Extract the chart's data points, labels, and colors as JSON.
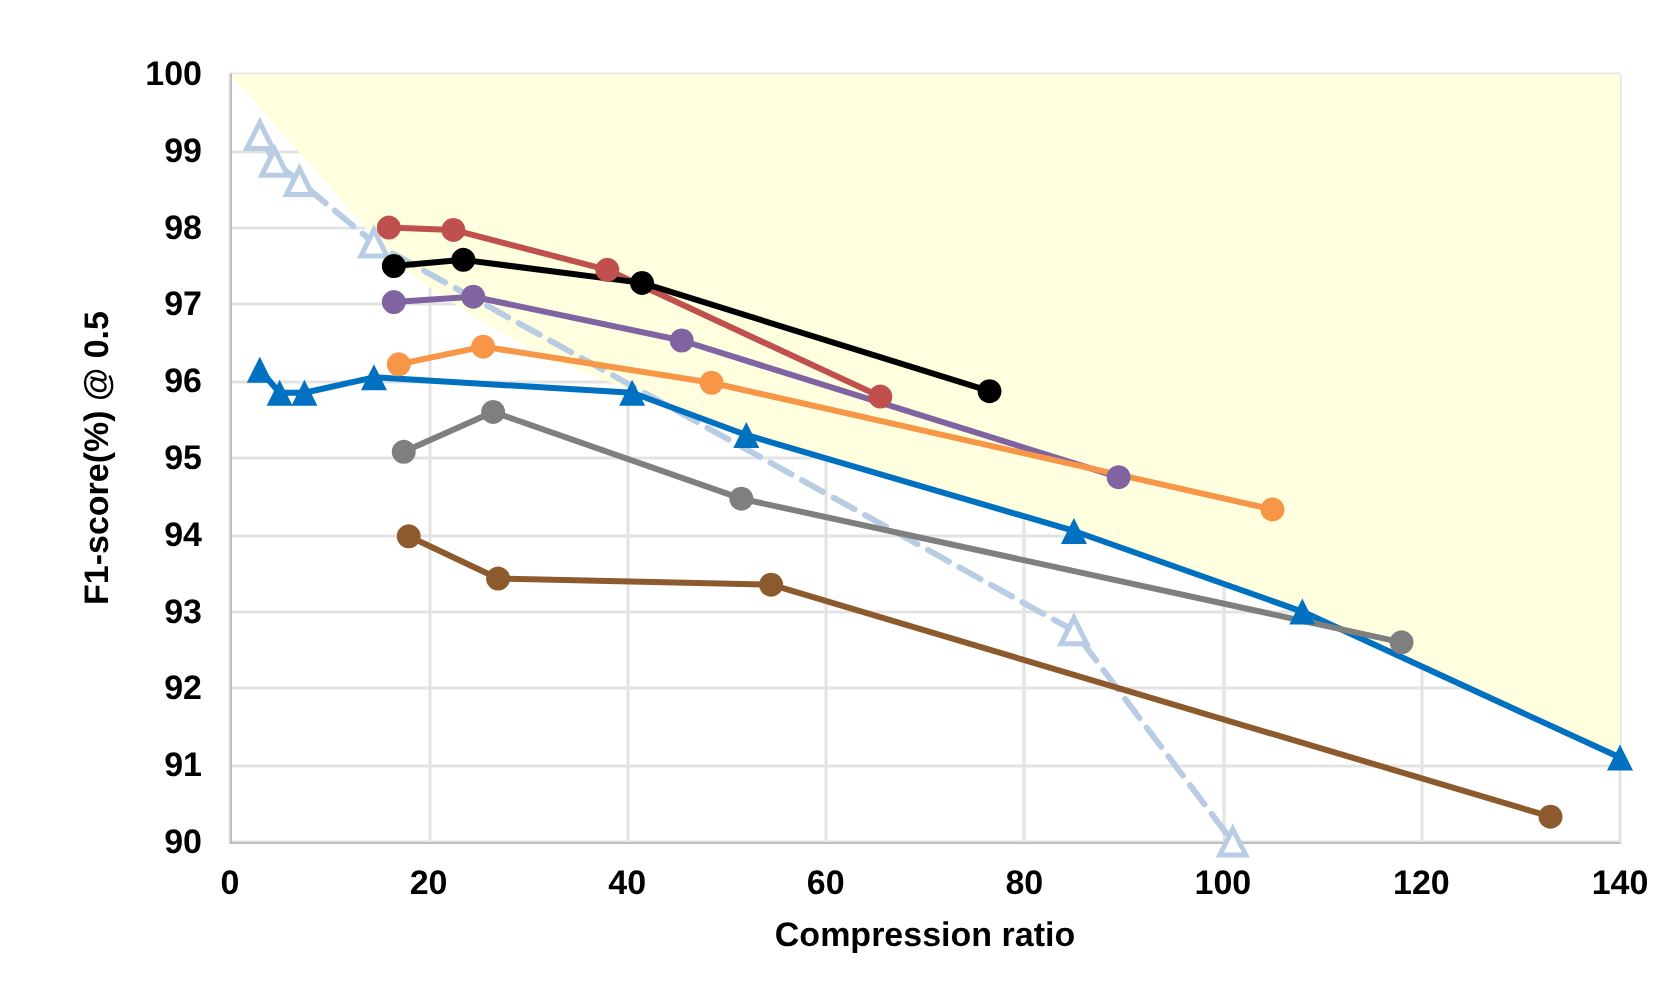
{
  "chart_data": {
    "type": "line",
    "xlabel": "Compression ratio",
    "ylabel": "F1-score(%) @ 0.5",
    "xlim": [
      0,
      140
    ],
    "xticks": [
      0,
      20,
      40,
      60,
      80,
      100,
      120,
      140
    ],
    "ylim": [
      90,
      100
    ],
    "yticks": [
      90,
      91,
      92,
      93,
      94,
      95,
      96,
      97,
      98,
      99,
      100
    ],
    "grid": true,
    "series": [
      {
        "color": "#b8cce4",
        "marker": "triangle",
        "line_style": "dashed",
        "x": [
          3,
          4.5,
          7,
          14.5,
          85,
          101
        ],
        "values": [
          99.2,
          98.85,
          98.6,
          97.8,
          92.75,
          90
        ]
      },
      {
        "color": "#c0504d",
        "marker": "circle",
        "line_style": "solid",
        "x": [
          16,
          22.5,
          38,
          65.5
        ],
        "values": [
          98,
          97.97,
          97.45,
          95.8
        ]
      },
      {
        "color": "#000000",
        "marker": "circle",
        "line_style": "solid",
        "x": [
          16.5,
          23.5,
          41.5,
          76.5
        ],
        "values": [
          97.5,
          97.58,
          97.28,
          95.87
        ]
      },
      {
        "color": "#8064a2",
        "marker": "circle",
        "line_style": "solid",
        "x": [
          16.5,
          24.5,
          45.5,
          89.5
        ],
        "values": [
          97.03,
          97.1,
          96.53,
          94.75
        ]
      },
      {
        "color": "#f79646",
        "marker": "circle",
        "line_style": "solid",
        "x": [
          17,
          25.5,
          48.5,
          105
        ],
        "values": [
          96.22,
          96.45,
          95.98,
          94.33
        ]
      },
      {
        "color": "#0070c0",
        "marker": "triangle",
        "line_style": "solid",
        "x": [
          3,
          5,
          7.5,
          14.5,
          40.5,
          52,
          85,
          108,
          140
        ],
        "values": [
          96.15,
          95.85,
          95.85,
          96.05,
          95.85,
          95.3,
          94.05,
          93.0,
          91.1
        ]
      },
      {
        "color": "#7f7f7f",
        "marker": "circle",
        "line_style": "solid",
        "x": [
          17.5,
          26.5,
          51.5,
          118
        ],
        "values": [
          95.08,
          95.6,
          94.47,
          92.6
        ]
      },
      {
        "color": "#8c5a2c",
        "marker": "circle",
        "line_style": "solid",
        "x": [
          18,
          27,
          54.5,
          133
        ],
        "values": [
          93.98,
          93.43,
          93.35,
          90.33
        ]
      },
      {
        "type": "area",
        "color": "#ffffe0",
        "x": [
          0,
          17,
          21,
          25,
          32,
          40,
          52,
          85,
          108,
          140,
          140
        ],
        "values": [
          100,
          97.5,
          97.15,
          96.8,
          96.3,
          95.9,
          95.3,
          94.05,
          93.0,
          91.1,
          100
        ]
      }
    ]
  }
}
